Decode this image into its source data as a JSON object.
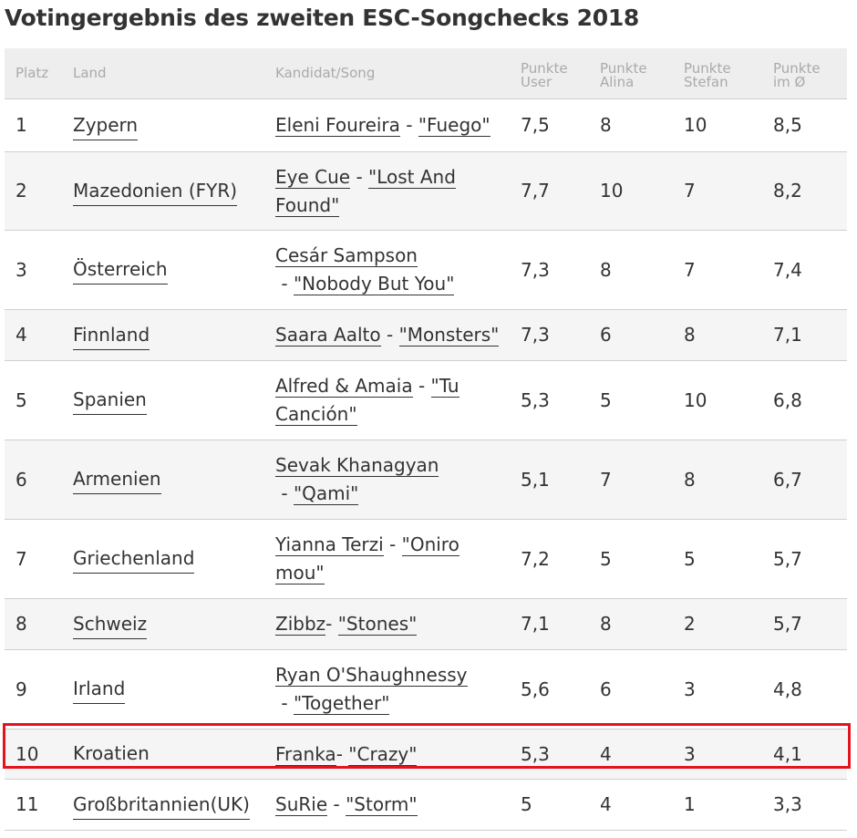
{
  "title": "Votingergebnis des zweiten ESC-Songchecks 2018",
  "headers": {
    "platz": "Platz",
    "land": "Land",
    "song": "Kandidat/Song",
    "user": [
      "Punkte",
      "User"
    ],
    "alina": [
      "Punkte",
      "Alina"
    ],
    "stefan": [
      "Punkte",
      "Stefan"
    ],
    "avg": [
      "Punkte",
      "im Ø"
    ]
  },
  "rows": [
    {
      "platz": "1",
      "land": "Zypern",
      "artist": "Eleni Foureira",
      "sep": " - ",
      "song": "\"Fuego\"",
      "user": "7,5",
      "alina": "8",
      "stefan": "10",
      "avg": "8,5"
    },
    {
      "platz": "2",
      "land": "Mazedonien (FYR)",
      "artist": "Eye Cue",
      "sep": " - ",
      "song": "\"Lost And Found\"",
      "user": "7,7",
      "alina": "10",
      "stefan": "7",
      "avg": "8,2"
    },
    {
      "platz": "3",
      "land": "Österreich",
      "artist": "Cesár Sampson",
      "sep": " - ",
      "song": "\"Nobody But You\"",
      "user": "7,3",
      "alina": "8",
      "stefan": "7",
      "avg": "7,4"
    },
    {
      "platz": "4",
      "land": "Finnland",
      "artist": "Saara Aalto",
      "sep": " - ",
      "song": "\"Monsters\"",
      "user": "7,3",
      "alina": "6",
      "stefan": "8",
      "avg": "7,1"
    },
    {
      "platz": "5",
      "land": "Spanien",
      "artist": "Alfred & Amaia",
      "sep": " - ",
      "song": "\"Tu Canción\"",
      "user": "5,3",
      "alina": "5",
      "stefan": "10",
      "avg": "6,8"
    },
    {
      "platz": "6",
      "land": "Armenien",
      "artist": "Sevak Khanagyan",
      "sep": " - ",
      "song": "\"Qami\"",
      "user": "5,1",
      "alina": "7",
      "stefan": "8",
      "avg": "6,7"
    },
    {
      "platz": "7",
      "land": "Griechenland",
      "artist": "Yianna Terzi",
      "sep": " - ",
      "song": "\"Oniro mou\"",
      "user": "7,2",
      "alina": "5",
      "stefan": "5",
      "avg": "5,7"
    },
    {
      "platz": "8",
      "land": "Schweiz",
      "artist": "Zibbz",
      "sep": "- ",
      "song": "\"Stones\"",
      "user": "7,1",
      "alina": "8",
      "stefan": "2",
      "avg": "5,7"
    },
    {
      "platz": "9",
      "land": "Irland",
      "artist": "Ryan O'Shaughnessy",
      "sep": " - ",
      "song": "\"Together\"",
      "user": "5,6",
      "alina": "6",
      "stefan": "3",
      "avg": "4,8"
    },
    {
      "platz": "10",
      "land": "Kroatien",
      "artist": "Franka",
      "sep": "- ",
      "song": "\"Crazy\"",
      "user": "5,3",
      "alina": "4",
      "stefan": "3",
      "avg": "4,1"
    },
    {
      "platz": "11",
      "land": "Großbritannien(UK)",
      "artist": "SuRie",
      "sep": " - ",
      "song": "\"Storm\"",
      "user": "5",
      "alina": "4",
      "stefan": "1",
      "avg": "3,3"
    }
  ],
  "highlight_row": "10",
  "colors": {
    "highlight_border": "#e3141e",
    "header_bg": "#eeeeee",
    "alt_row_bg": "#f5f5f5"
  }
}
